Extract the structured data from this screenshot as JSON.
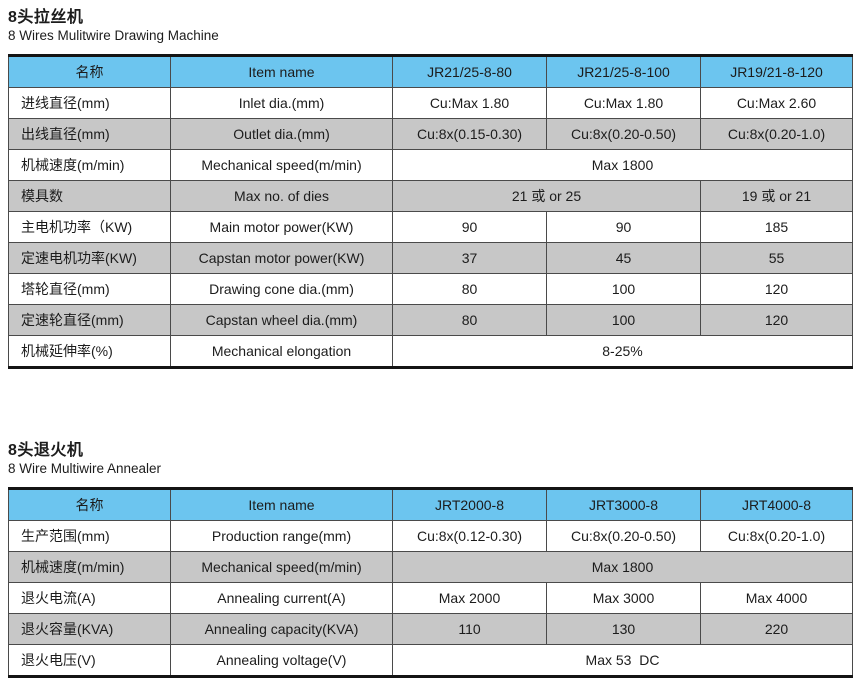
{
  "colors": {
    "header_bg": "#6cc5ef",
    "shaded_row_bg": "#c7c7c7",
    "row_bg": "#ffffff",
    "heavy_border": "#141414",
    "cell_border": "#4a4a4a",
    "text": "#1c1c1c"
  },
  "tables": [
    {
      "title_zh": "8头拉丝机",
      "title_en": "8 Wires Mulitwire Drawing Machine",
      "headers": [
        "名称",
        "Item name",
        "JR21/25-8-80",
        "JR21/25-8-100",
        "JR19/21-8-120"
      ],
      "rows": [
        {
          "name_zh": "进线直径(mm)",
          "item_name": "Inlet dia.(mm)",
          "shaded": false,
          "values": [
            {
              "text": "Cu:Max 1.80",
              "span": 1
            },
            {
              "text": "Cu:Max 1.80",
              "span": 1
            },
            {
              "text": "Cu:Max 2.60",
              "span": 1
            }
          ]
        },
        {
          "name_zh": "出线直径(mm)",
          "item_name": "Outlet dia.(mm)",
          "shaded": true,
          "values": [
            {
              "text": "Cu:8x(0.15-0.30)",
              "span": 1
            },
            {
              "text": "Cu:8x(0.20-0.50)",
              "span": 1
            },
            {
              "text": "Cu:8x(0.20-1.0)",
              "span": 1
            }
          ]
        },
        {
          "name_zh": "机械速度(m/min)",
          "item_name": "Mechanical speed(m/min)",
          "shaded": false,
          "values": [
            {
              "text": "Max 1800",
              "span": 3
            }
          ]
        },
        {
          "name_zh": "模具数",
          "item_name": "Max no. of dies",
          "shaded": true,
          "values": [
            {
              "text": "21 或 or 25",
              "span": 2
            },
            {
              "text": "19 或 or 21",
              "span": 1
            }
          ]
        },
        {
          "name_zh": "主电机功率（KW)",
          "item_name": "Main motor power(KW)",
          "shaded": false,
          "values": [
            {
              "text": "90",
              "span": 1
            },
            {
              "text": "90",
              "span": 1
            },
            {
              "text": "185",
              "span": 1
            }
          ]
        },
        {
          "name_zh": "定速电机功率(KW)",
          "item_name": "Capstan motor power(KW)",
          "shaded": true,
          "values": [
            {
              "text": "37",
              "span": 1
            },
            {
              "text": "45",
              "span": 1
            },
            {
              "text": "55",
              "span": 1
            }
          ]
        },
        {
          "name_zh": "塔轮直径(mm)",
          "item_name": "Drawing cone dia.(mm)",
          "shaded": false,
          "values": [
            {
              "text": "80",
              "span": 1
            },
            {
              "text": "100",
              "span": 1
            },
            {
              "text": "120",
              "span": 1
            }
          ]
        },
        {
          "name_zh": "定速轮直径(mm)",
          "item_name": "Capstan wheel dia.(mm)",
          "shaded": true,
          "values": [
            {
              "text": "80",
              "span": 1
            },
            {
              "text": "100",
              "span": 1
            },
            {
              "text": "120",
              "span": 1
            }
          ]
        },
        {
          "name_zh": "机械延伸率(%)",
          "item_name": "Mechanical elongation",
          "shaded": false,
          "values": [
            {
              "text": "8-25%",
              "span": 3
            }
          ]
        }
      ]
    },
    {
      "title_zh": "8头退火机",
      "title_en": "8 Wire Multiwire Annealer",
      "headers": [
        "名称",
        "Item name",
        "JRT2000-8",
        "JRT3000-8",
        "JRT4000-8"
      ],
      "rows": [
        {
          "name_zh": "生产范围(mm)",
          "item_name": "Production range(mm)",
          "shaded": false,
          "values": [
            {
              "text": "Cu:8x(0.12-0.30)",
              "span": 1
            },
            {
              "text": "Cu:8x(0.20-0.50)",
              "span": 1
            },
            {
              "text": "Cu:8x(0.20-1.0)",
              "span": 1
            }
          ]
        },
        {
          "name_zh": "机械速度(m/min)",
          "item_name": "Mechanical speed(m/min)",
          "shaded": true,
          "values": [
            {
              "text": "Max 1800",
              "span": 3
            }
          ]
        },
        {
          "name_zh": "退火电流(A)",
          "item_name": "Annealing current(A)",
          "shaded": false,
          "values": [
            {
              "text": "Max 2000",
              "span": 1
            },
            {
              "text": "Max 3000",
              "span": 1
            },
            {
              "text": "Max 4000",
              "span": 1
            }
          ]
        },
        {
          "name_zh": "退火容量(KVA)",
          "item_name": "Annealing capacity(KVA)",
          "shaded": true,
          "values": [
            {
              "text": "110",
              "span": 1
            },
            {
              "text": "130",
              "span": 1
            },
            {
              "text": "220",
              "span": 1
            }
          ]
        },
        {
          "name_zh": "退火电压(V)",
          "item_name": "Annealing voltage(V)",
          "shaded": false,
          "values": [
            {
              "text": "Max 53  DC",
              "span": 3
            }
          ]
        }
      ]
    }
  ]
}
